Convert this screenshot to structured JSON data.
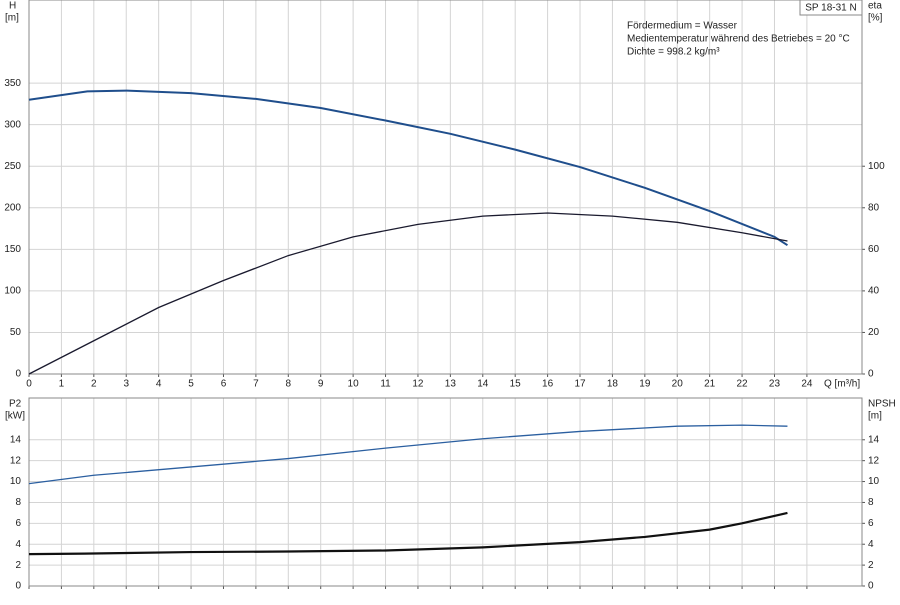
{
  "chart_data": [
    {
      "type": "line",
      "label": "SP 18-31 N",
      "annotations": [
        "Fördermedium = Wasser",
        "Medientemperatur während des Betriebes = 20 °C",
        "Dichte = 998.2 kg/m³"
      ],
      "ylabel": "H",
      "yunit": "[m]",
      "y2label": "eta",
      "y2unit": "[%]",
      "xlabel": "Q [m³/h]",
      "xlim": [
        0,
        25.7
      ],
      "xticks": [
        0,
        1,
        2,
        3,
        4,
        5,
        6,
        7,
        8,
        9,
        10,
        11,
        12,
        13,
        14,
        15,
        16,
        17,
        18,
        19,
        20,
        21,
        22,
        23,
        24
      ],
      "ylim": [
        0,
        450
      ],
      "yticks": [
        0,
        50,
        100,
        150,
        200,
        250,
        300,
        350
      ],
      "y2lim": [
        0,
        180
      ],
      "y2ticks": [
        0,
        20,
        40,
        60,
        80,
        100
      ],
      "grid": true,
      "series": [
        {
          "color": "#1f4e8c",
          "width": 2,
          "x": [
            0,
            1.8,
            3,
            5,
            7,
            9,
            11,
            13,
            15,
            17,
            19,
            21,
            23,
            23.4
          ],
          "values": [
            330,
            340,
            341,
            338,
            331,
            320,
            305,
            289,
            270,
            249,
            224,
            196,
            165,
            155
          ]
        },
        {
          "color": "#1a1a2e",
          "width": 1.3,
          "axis": "y2",
          "x": [
            0,
            2,
            4,
            6,
            8,
            10,
            12,
            14,
            16,
            18,
            20,
            22,
            23.4
          ],
          "values": [
            0,
            16,
            32,
            45,
            57,
            66,
            72,
            76,
            77.5,
            76,
            73,
            68,
            64
          ]
        }
      ]
    },
    {
      "type": "line",
      "ylabel": "P2",
      "yunit": "[kW]",
      "y2label": "NPSH",
      "y2unit": "[m]",
      "xlim": [
        0,
        25.7
      ],
      "ylim": [
        0,
        18
      ],
      "yticks": [
        0,
        2,
        4,
        6,
        8,
        10,
        12,
        14
      ],
      "y2lim": [
        0,
        18
      ],
      "y2ticks": [
        0,
        2,
        4,
        6,
        8,
        10,
        12,
        14
      ],
      "grid": true,
      "series": [
        {
          "color": "#2b5fa0",
          "width": 1.3,
          "x": [
            0,
            2,
            5,
            8,
            11,
            14,
            17,
            20,
            22,
            23.4
          ],
          "values": [
            9.8,
            10.6,
            11.4,
            12.2,
            13.2,
            14.1,
            14.8,
            15.3,
            15.4,
            15.3
          ]
        },
        {
          "color": "#111111",
          "width": 2.2,
          "axis": "y2",
          "x": [
            0,
            1.7,
            5,
            8,
            11,
            14,
            17,
            19,
            21,
            22,
            23.4
          ],
          "values": [
            3.05,
            3.1,
            3.25,
            3.3,
            3.4,
            3.7,
            4.2,
            4.7,
            5.4,
            6.0,
            7.0
          ]
        }
      ]
    }
  ]
}
